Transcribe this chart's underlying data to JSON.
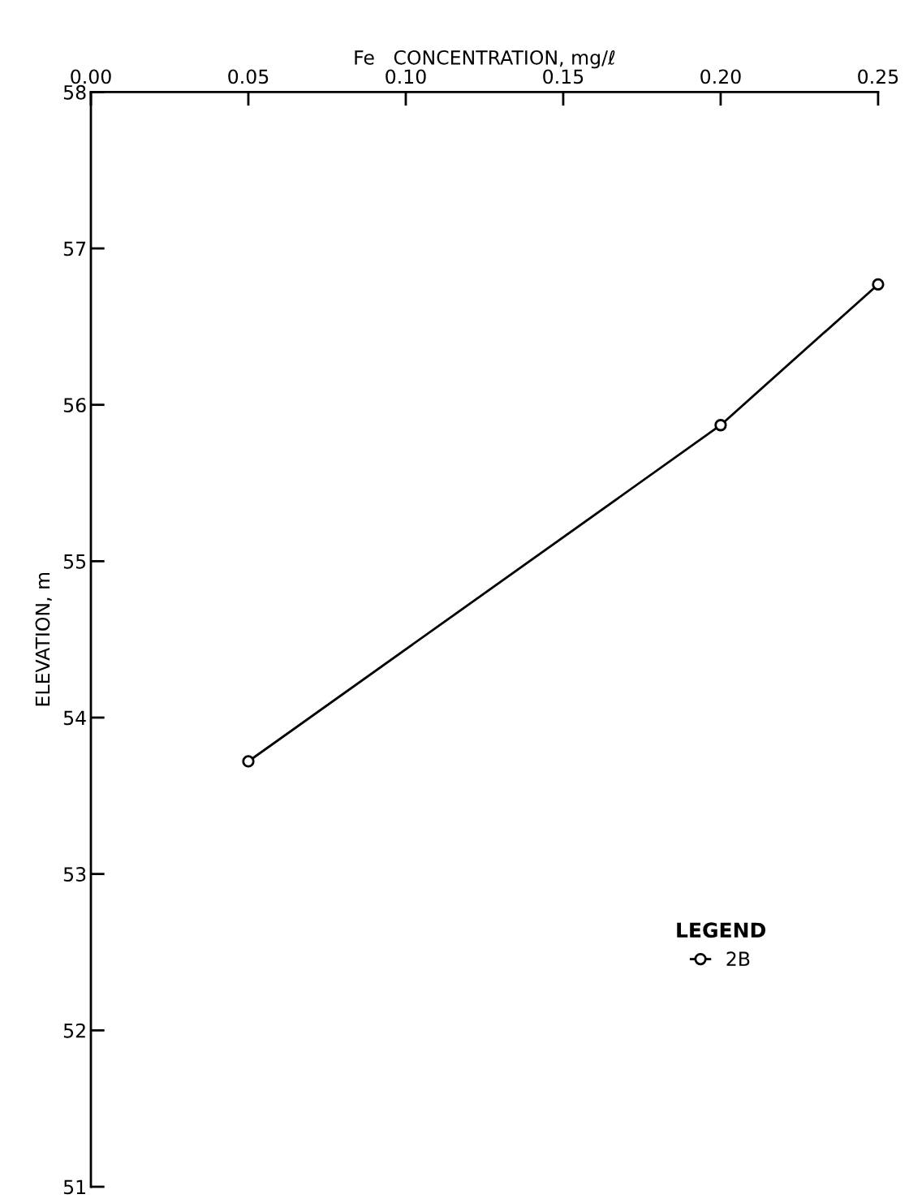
{
  "chart_data": {
    "type": "line",
    "xlabel": "Fe   CONCENTRATION, mg/ℓ",
    "ylabel": "ELEVATION, m",
    "legend_title": "LEGEND",
    "x": [
      0.05,
      0.2,
      0.25
    ],
    "series": [
      {
        "name": "2B",
        "color": "#000000",
        "values": [
          53.72,
          55.87,
          56.77
        ]
      }
    ],
    "xlim": [
      0.0,
      0.25
    ],
    "xticks": [
      {
        "value": 0.0,
        "label": "0.00"
      },
      0.05,
      {
        "value": 0.1,
        "label": "0.10"
      },
      0.15,
      {
        "value": 0.2,
        "label": "0.20"
      },
      0.25
    ],
    "ylim": [
      51,
      58
    ],
    "yticks": [
      51,
      52,
      53,
      54,
      55,
      56,
      57,
      58
    ],
    "grid": false,
    "legend": "right",
    "marker": "circle",
    "line_style": "solid"
  }
}
